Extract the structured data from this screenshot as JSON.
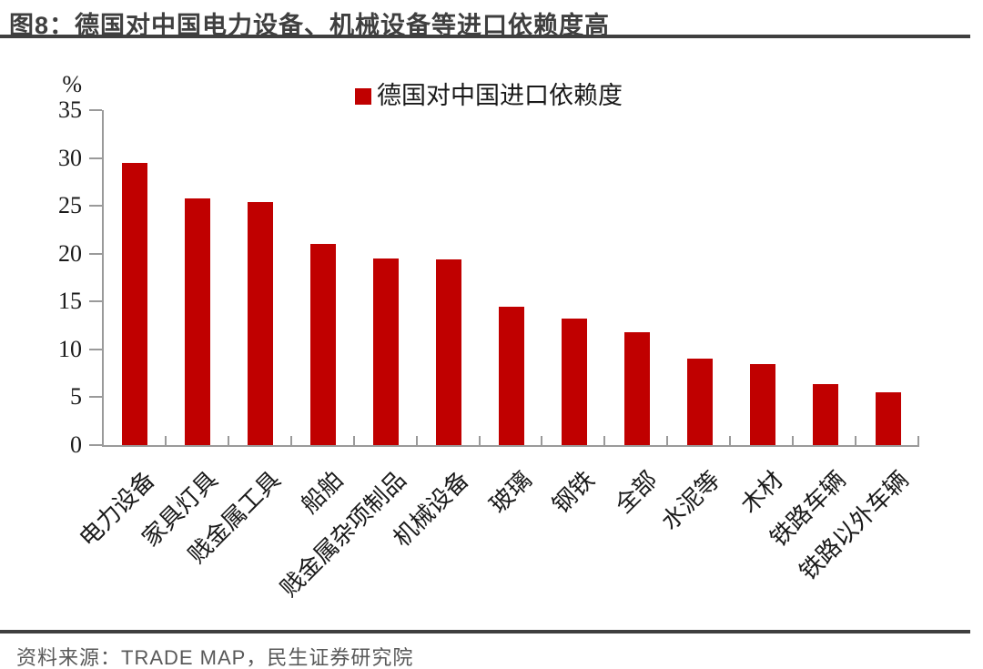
{
  "figure": {
    "title": "图8：德国对中国电力设备、机械设备等进口依赖度高",
    "source": "资料来源：TRADE MAP，民生证券研究院"
  },
  "chart_data": {
    "type": "bar",
    "title": "",
    "series_name": "德国对中国进口依赖度",
    "unit": "%",
    "categories": [
      "电力设备",
      "家具灯具",
      "贱金属工具",
      "船舶",
      "贱金属杂项制品",
      "机械设备",
      "玻璃",
      "钢铁",
      "全部",
      "水泥等",
      "木材",
      "铁路车辆",
      "铁路以外车辆"
    ],
    "values": [
      29.5,
      25.8,
      25.4,
      21.0,
      19.5,
      19.4,
      14.5,
      13.2,
      11.8,
      9.0,
      8.5,
      6.4,
      5.5
    ],
    "ylim": [
      0,
      35
    ],
    "y_ticks": [
      0,
      5,
      10,
      15,
      20,
      25,
      30,
      35
    ],
    "grid": false,
    "legend_position": "top-center",
    "bar_color": "#C00000",
    "axis_color": "#9A9A9A",
    "text_color": "#1A1A1A"
  }
}
